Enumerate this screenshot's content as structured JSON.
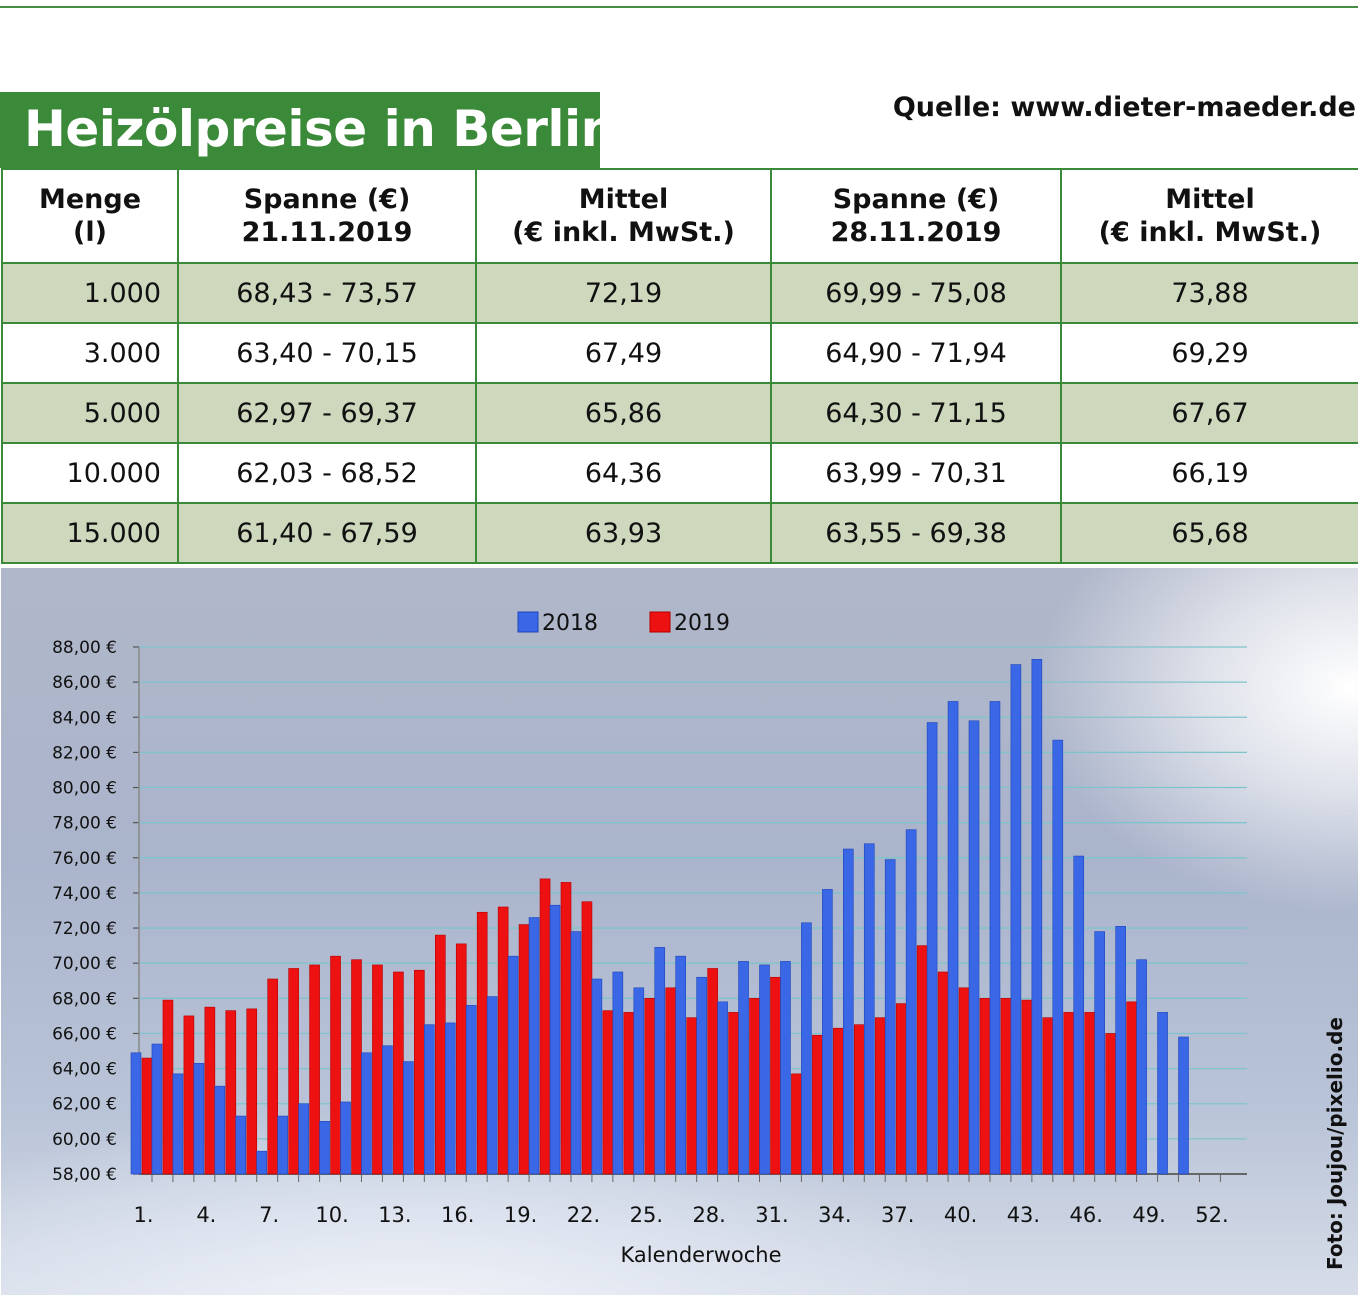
{
  "header": {
    "title": "Heizölpreise in Berlin",
    "source": "Quelle: www.dieter-maeder.de"
  },
  "table": {
    "headers": [
      {
        "l1": "Menge",
        "l2": "(l)"
      },
      {
        "l1": "Spanne (€)",
        "l2": "21.11.2019"
      },
      {
        "l1": "Mittel",
        "l2": "(€ inkl. MwSt.)"
      },
      {
        "l1": "Spanne (€)",
        "l2": "28.11.2019"
      },
      {
        "l1": "Mittel",
        "l2": "(€ inkl. MwSt.)"
      }
    ],
    "rows": [
      [
        "1.000",
        "68,43 - 73,57",
        "72,19",
        "69,99 - 75,08",
        "73,88"
      ],
      [
        "3.000",
        "63,40 - 70,15",
        "67,49",
        "64,90 - 71,94",
        "69,29"
      ],
      [
        "5.000",
        "62,97 - 69,37",
        "65,86",
        "64,30 - 71,15",
        "67,67"
      ],
      [
        "10.000",
        "62,03 - 68,52",
        "64,36",
        "63,99 - 70,31",
        "66,19"
      ],
      [
        "15.000",
        "61,40 - 67,59",
        "63,93",
        "63,55 - 69,38",
        "65,68"
      ]
    ]
  },
  "photo_credit": "Foto: Joujou/pixelio.de",
  "colors": {
    "green": "#3b8a3a",
    "row_shade": "#cdd8bd",
    "series_2018": "#3a67e6",
    "series_2019": "#ee1111"
  },
  "chart_data": {
    "type": "bar",
    "xlabel": "Kalenderwoche",
    "ylabel": "",
    "ylim": [
      58,
      88
    ],
    "ytick_step": 2,
    "ytick_labels": [
      "58,00 €",
      "60,00 €",
      "62,00 €",
      "64,00 €",
      "66,00 €",
      "68,00 €",
      "70,00 €",
      "72,00 €",
      "74,00 €",
      "76,00 €",
      "78,00 €",
      "80,00 €",
      "82,00 €",
      "84,00 €",
      "86,00 €",
      "88,00 €"
    ],
    "xtick_labels": [
      "1.",
      "4.",
      "7.",
      "10.",
      "13.",
      "16.",
      "19.",
      "22.",
      "25.",
      "28.",
      "31.",
      "34.",
      "37.",
      "40.",
      "43.",
      "46.",
      "49.",
      "52."
    ],
    "legend_position": "top-center",
    "grid": true,
    "categories": [
      1,
      2,
      3,
      4,
      5,
      6,
      7,
      8,
      9,
      10,
      11,
      12,
      13,
      14,
      15,
      16,
      17,
      18,
      19,
      20,
      21,
      22,
      23,
      24,
      25,
      26,
      27,
      28,
      29,
      30,
      31,
      32,
      33,
      34,
      35,
      36,
      37,
      38,
      39,
      40,
      41,
      42,
      43,
      44,
      45,
      46,
      47,
      48,
      49,
      50,
      51,
      52
    ],
    "series": [
      {
        "name": "2018",
        "values": [
          64.9,
          65.4,
          63.7,
          64.3,
          63.0,
          61.3,
          59.3,
          61.3,
          62.0,
          61.0,
          62.1,
          64.9,
          65.3,
          64.4,
          66.5,
          66.6,
          67.6,
          68.1,
          70.4,
          72.6,
          73.3,
          71.8,
          69.1,
          69.5,
          68.6,
          70.9,
          70.4,
          69.2,
          67.8,
          70.1,
          69.9,
          70.1,
          72.3,
          74.2,
          76.5,
          76.8,
          75.9,
          77.6,
          83.7,
          84.9,
          83.8,
          84.9,
          87.0,
          87.3,
          82.7,
          76.1,
          71.8,
          72.1,
          70.2,
          67.2,
          65.8,
          null
        ]
      },
      {
        "name": "2019",
        "values": [
          64.6,
          67.9,
          67.0,
          67.5,
          67.3,
          67.4,
          69.1,
          69.7,
          69.9,
          70.4,
          70.2,
          69.9,
          69.5,
          69.6,
          71.6,
          71.1,
          72.9,
          73.2,
          72.2,
          74.8,
          74.6,
          73.5,
          67.3,
          67.2,
          68.0,
          68.6,
          66.9,
          69.7,
          67.2,
          68.0,
          69.2,
          63.7,
          65.9,
          66.3,
          66.5,
          66.9,
          67.7,
          71.0,
          69.5,
          68.6,
          68.0,
          68.0,
          67.9,
          66.9,
          67.2,
          67.2,
          66.0,
          67.8,
          null,
          null,
          null,
          null
        ]
      }
    ]
  }
}
